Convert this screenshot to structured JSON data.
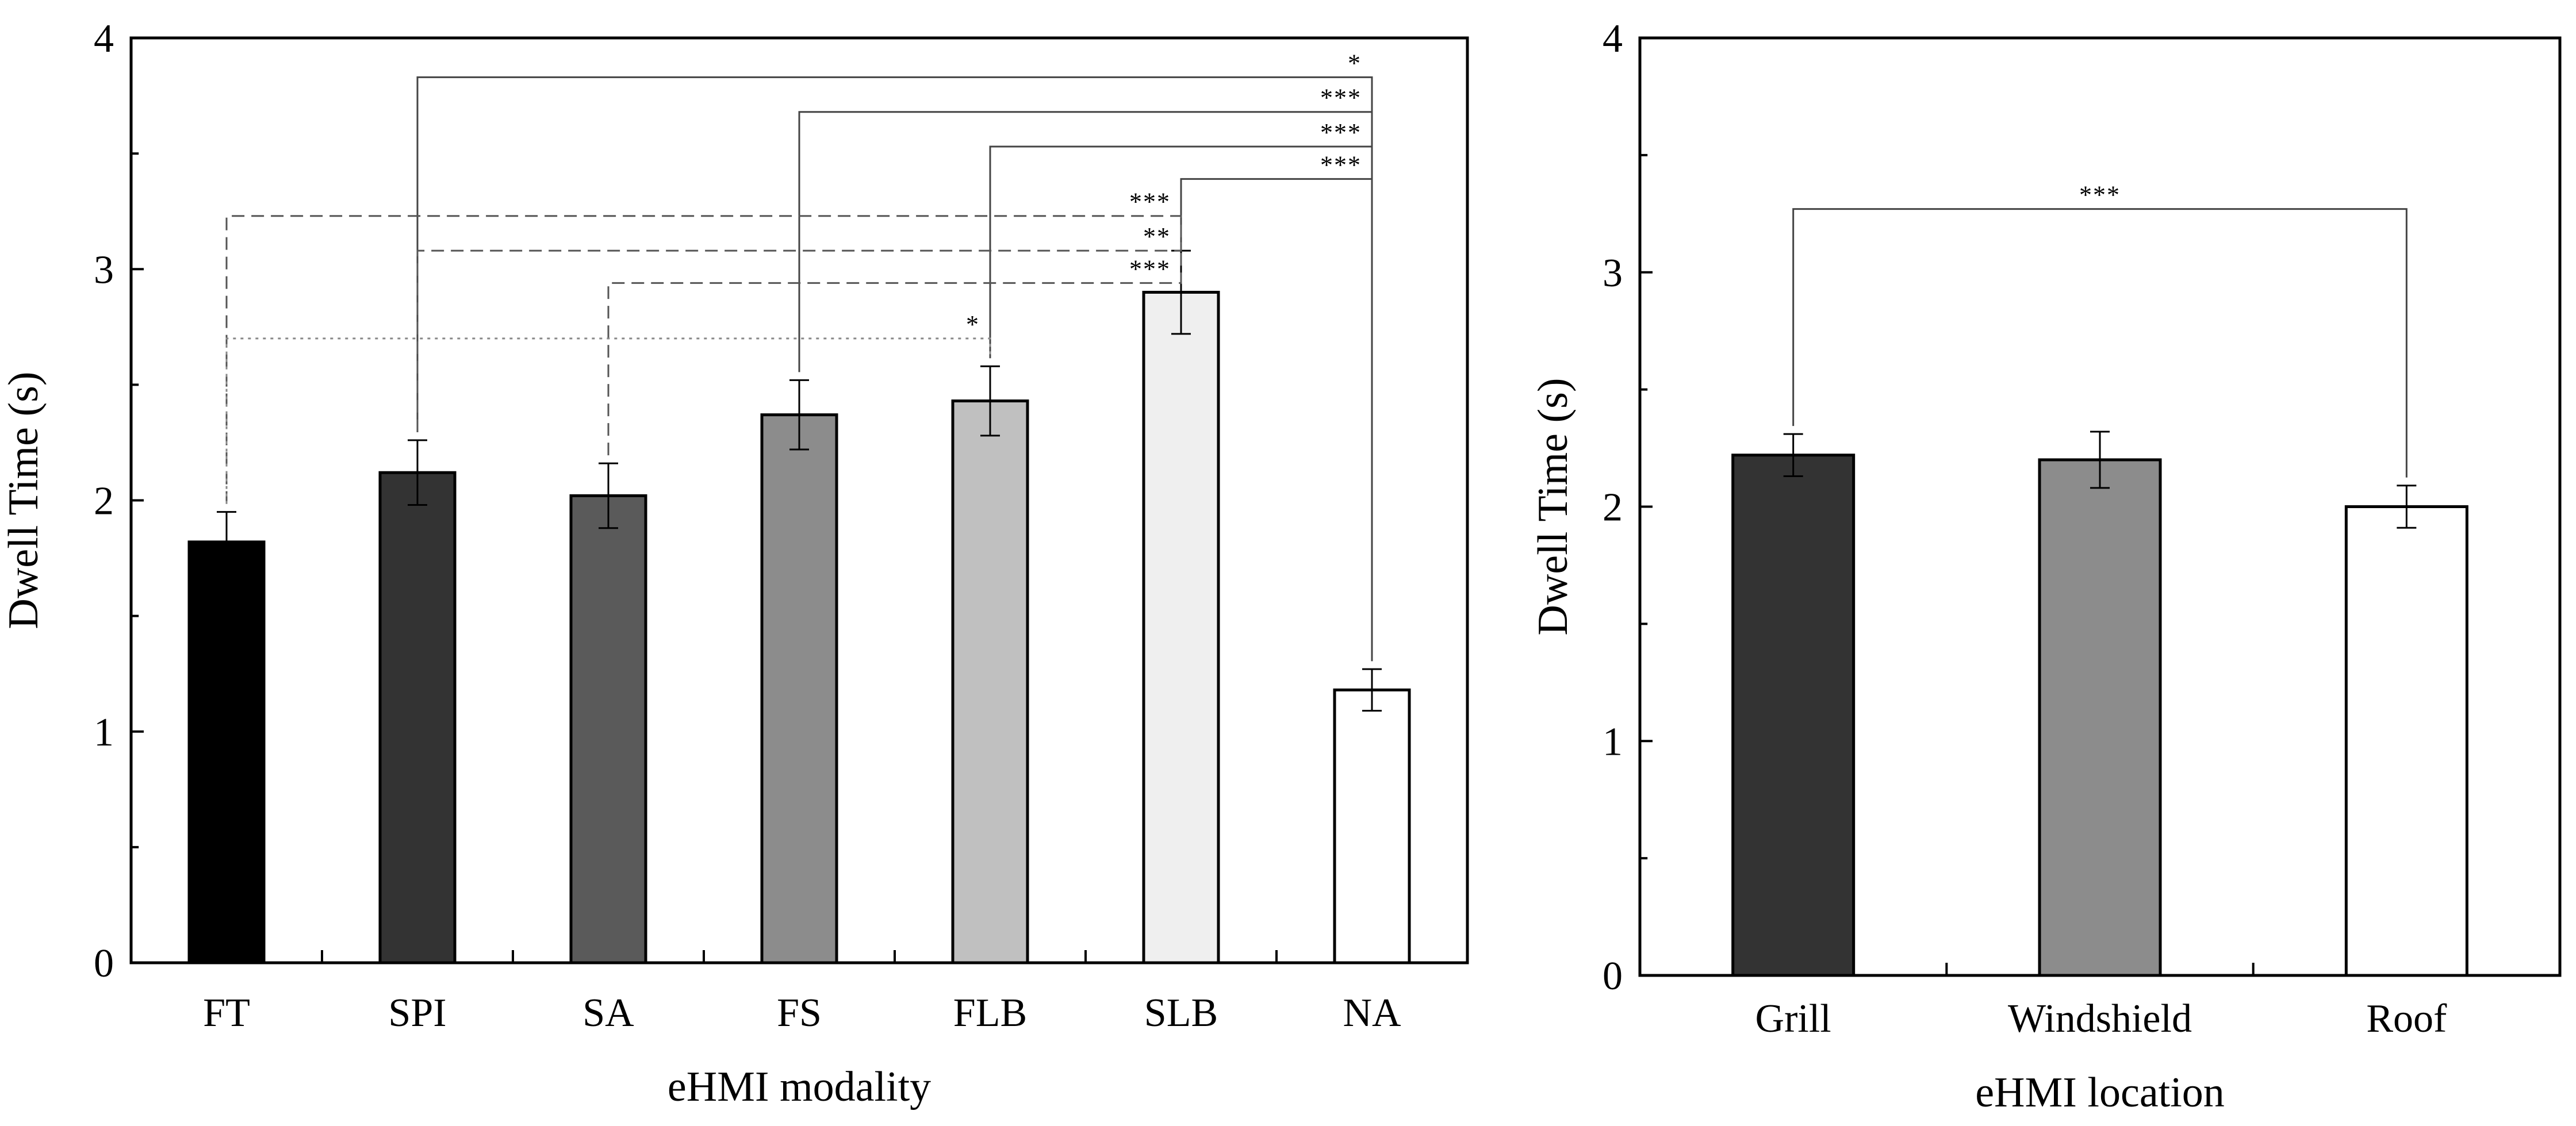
{
  "chart_data": [
    {
      "type": "bar",
      "title": "",
      "xlabel": "eHMI modality",
      "ylabel": "Dwell Time (s)",
      "ylim": [
        0,
        4
      ],
      "yticks": [
        0,
        1,
        2,
        3,
        4
      ],
      "categories": [
        "FT",
        "SPI",
        "SA",
        "FS",
        "FLB",
        "SLB",
        "NA"
      ],
      "values": [
        1.82,
        2.12,
        2.02,
        2.37,
        2.43,
        2.9,
        1.18
      ],
      "errors": [
        0.13,
        0.14,
        0.14,
        0.15,
        0.15,
        0.18,
        0.09
      ],
      "colors": [
        "#000000",
        "#333333",
        "#5a5a5a",
        "#8c8c8c",
        "#c0c0c0",
        "#efefef",
        "#ffffff"
      ],
      "significance": [
        {
          "from": "SPI",
          "to": "NA",
          "level": 3.83,
          "label": "*",
          "style": "solid"
        },
        {
          "from": "FS",
          "to": "NA",
          "level": 3.68,
          "label": "***",
          "style": "solid"
        },
        {
          "from": "FLB",
          "to": "NA",
          "level": 3.53,
          "label": "***",
          "style": "solid"
        },
        {
          "from": "SLB",
          "to": "NA",
          "level": 3.39,
          "label": "***",
          "style": "solid"
        },
        {
          "from": "FT",
          "to": "SLB",
          "level": 3.23,
          "label": "***",
          "style": "dashed"
        },
        {
          "from": "SPI",
          "to": "SLB",
          "level": 3.08,
          "label": "**",
          "style": "dashed"
        },
        {
          "from": "SA",
          "to": "SLB",
          "level": 2.94,
          "label": "***",
          "style": "dashed"
        },
        {
          "from": "FT",
          "to": "FLB",
          "level": 2.7,
          "label": "*",
          "style": "dotted"
        }
      ]
    },
    {
      "type": "bar",
      "title": "",
      "xlabel": "eHMI location",
      "ylabel": "Dwell Time (s)",
      "ylim": [
        0,
        4
      ],
      "yticks": [
        0,
        1,
        2,
        3,
        4
      ],
      "categories": [
        "Grill",
        "Windshield",
        "Roof"
      ],
      "values": [
        2.22,
        2.2,
        2.0
      ],
      "errors": [
        0.09,
        0.12,
        0.09
      ],
      "colors": [
        "#333333",
        "#8c8c8c",
        "#ffffff"
      ],
      "significance": [
        {
          "from": "Grill",
          "to": "Roof",
          "level": 3.27,
          "label": "***",
          "style": "solid"
        }
      ]
    }
  ]
}
